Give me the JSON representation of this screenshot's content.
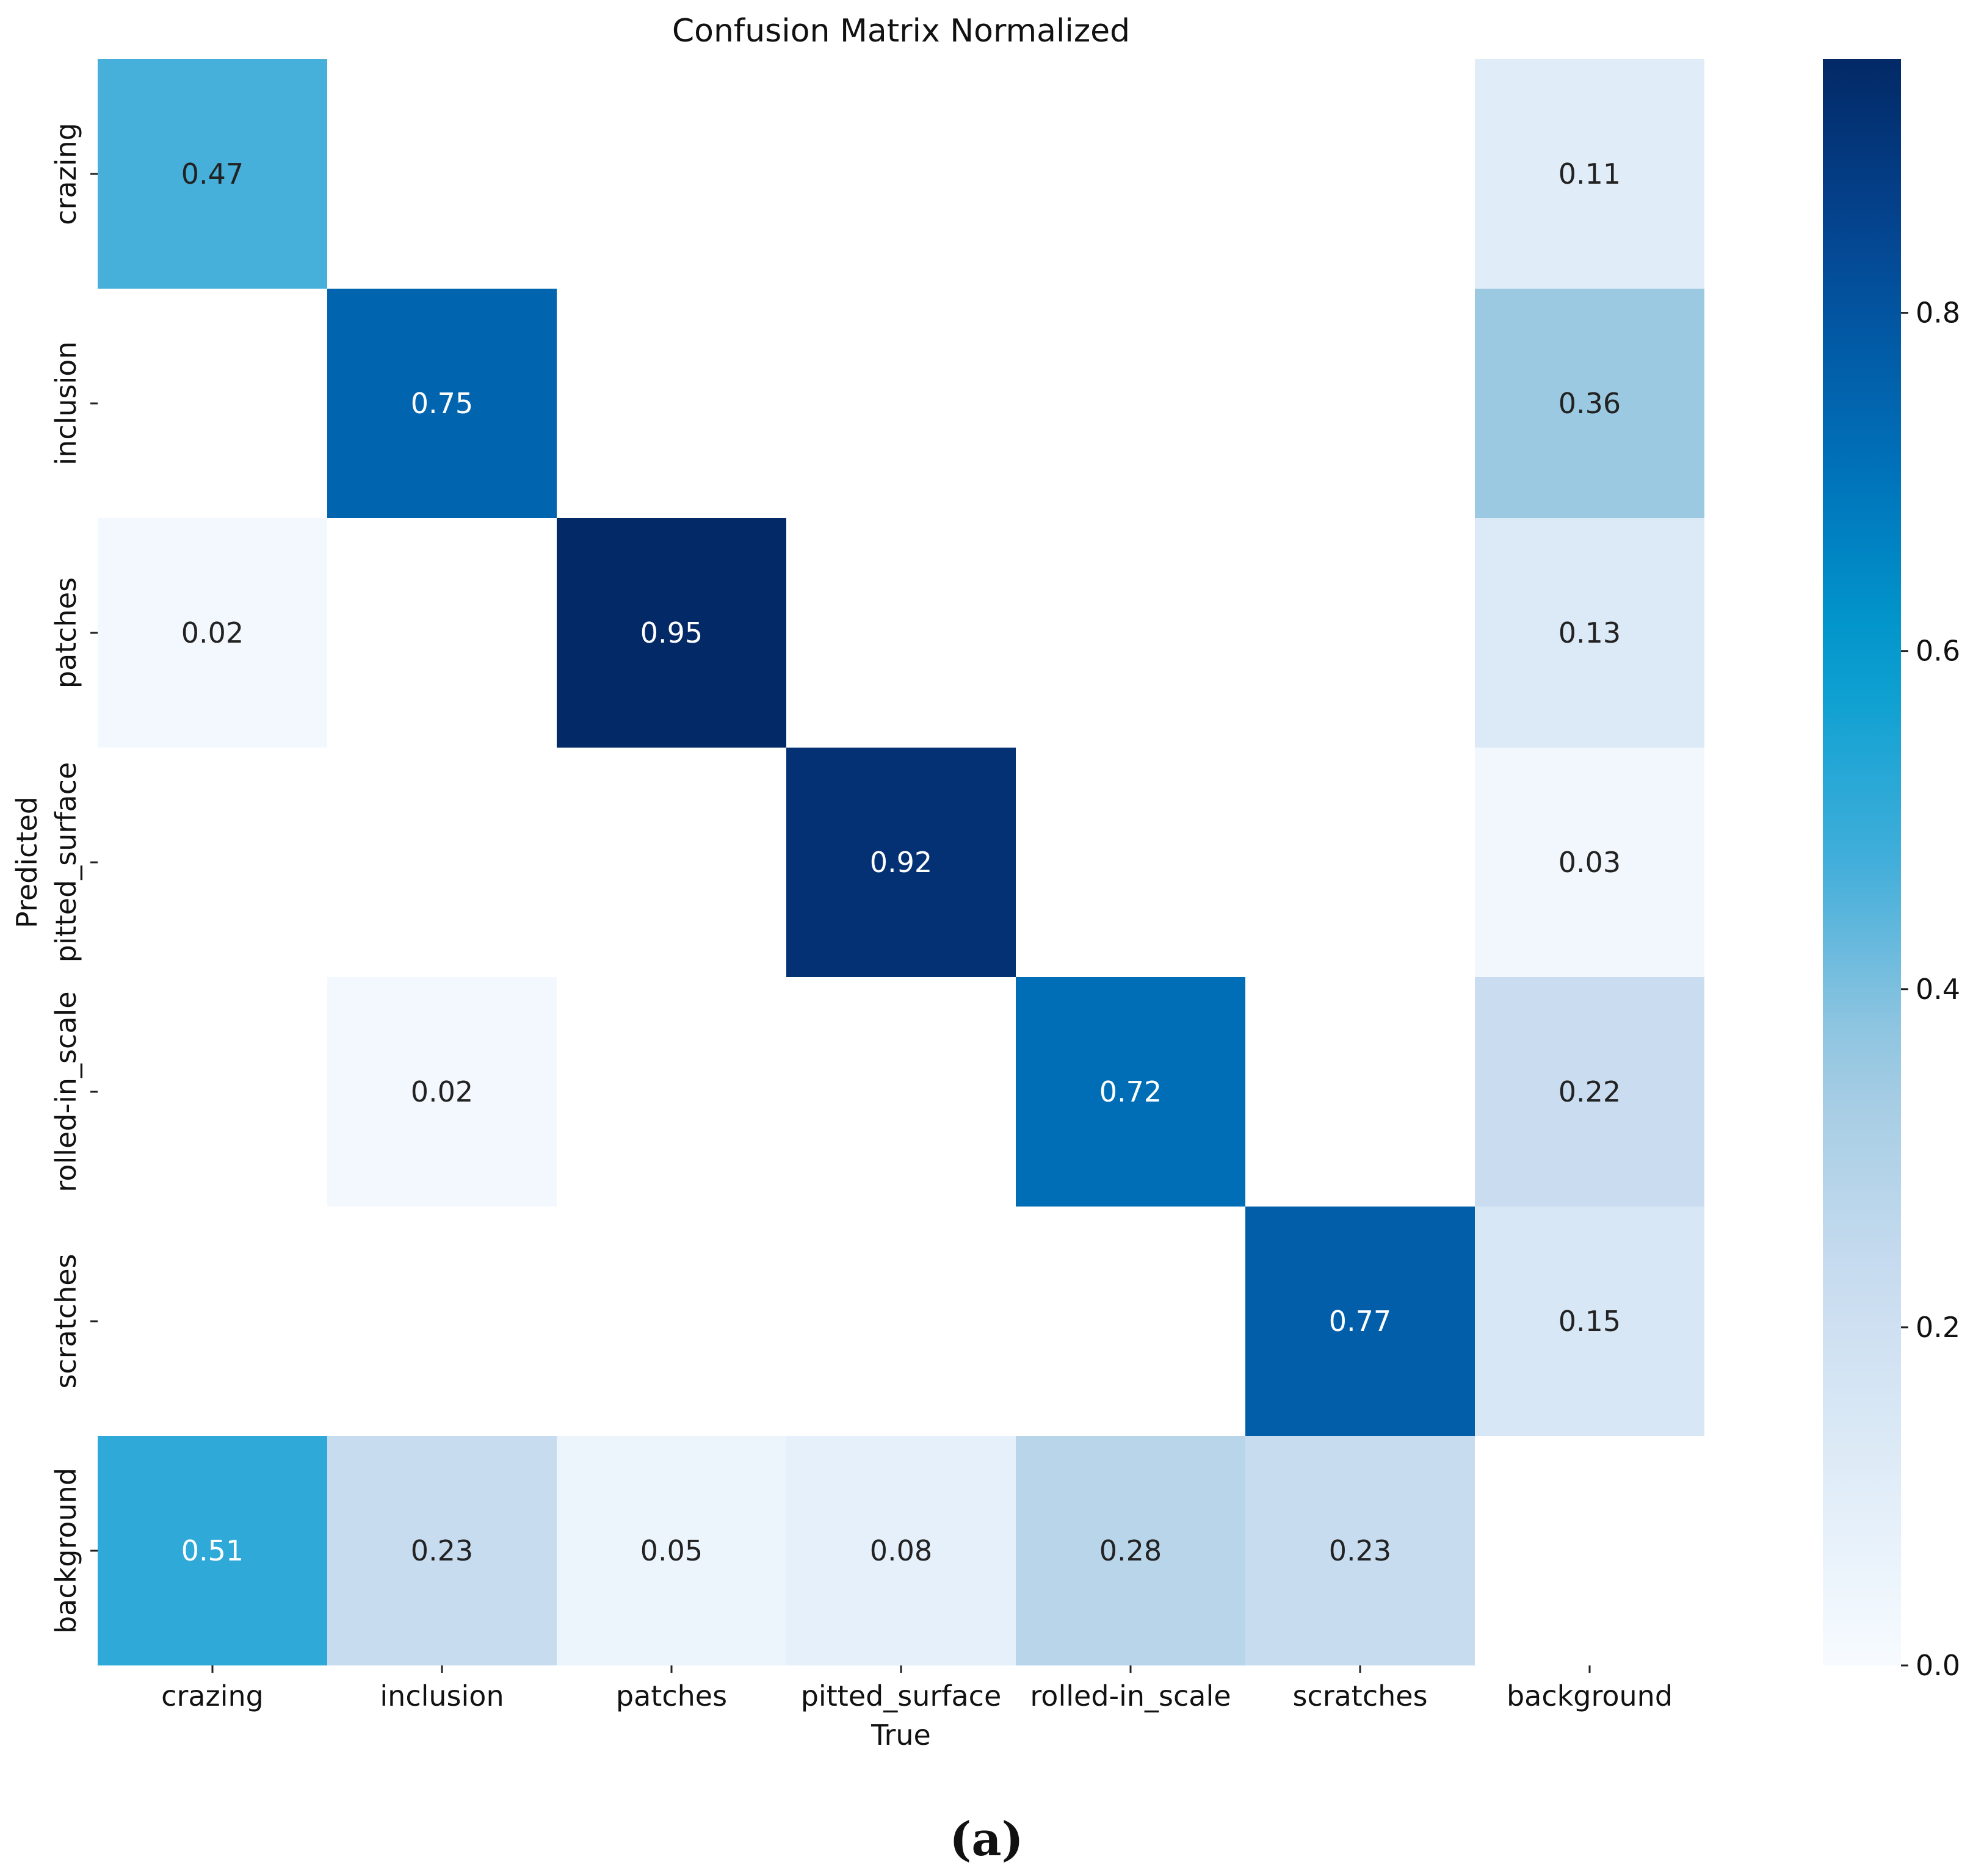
{
  "chart_data": {
    "type": "heatmap",
    "title": "Confusion Matrix Normalized",
    "xlabel": "True",
    "ylabel": "Predicted",
    "x_categories": [
      "crazing",
      "inclusion",
      "patches",
      "pitted_surface",
      "rolled-in_scale",
      "scratches",
      "background"
    ],
    "y_categories": [
      "crazing",
      "inclusion",
      "patches",
      "pitted_surface",
      "rolled-in_scale",
      "scratches",
      "background"
    ],
    "values": [
      [
        0.47,
        null,
        null,
        null,
        null,
        null,
        0.11
      ],
      [
        null,
        0.75,
        null,
        null,
        null,
        null,
        0.36
      ],
      [
        0.02,
        null,
        0.95,
        null,
        null,
        null,
        0.13
      ],
      [
        null,
        null,
        null,
        0.92,
        null,
        null,
        0.03
      ],
      [
        null,
        0.02,
        null,
        null,
        0.72,
        null,
        0.22
      ],
      [
        null,
        null,
        null,
        null,
        null,
        0.77,
        0.15
      ],
      [
        0.51,
        0.23,
        0.05,
        0.08,
        0.28,
        0.23,
        null
      ]
    ],
    "colorbar": {
      "range": [
        0.0,
        0.95
      ],
      "ticks": [
        0.0,
        0.2,
        0.4,
        0.6,
        0.8
      ],
      "tick_labels": [
        "0.0",
        "0.2",
        "0.4",
        "0.6",
        "0.8"
      ]
    },
    "colormap": "Blues"
  },
  "caption": "(a)"
}
